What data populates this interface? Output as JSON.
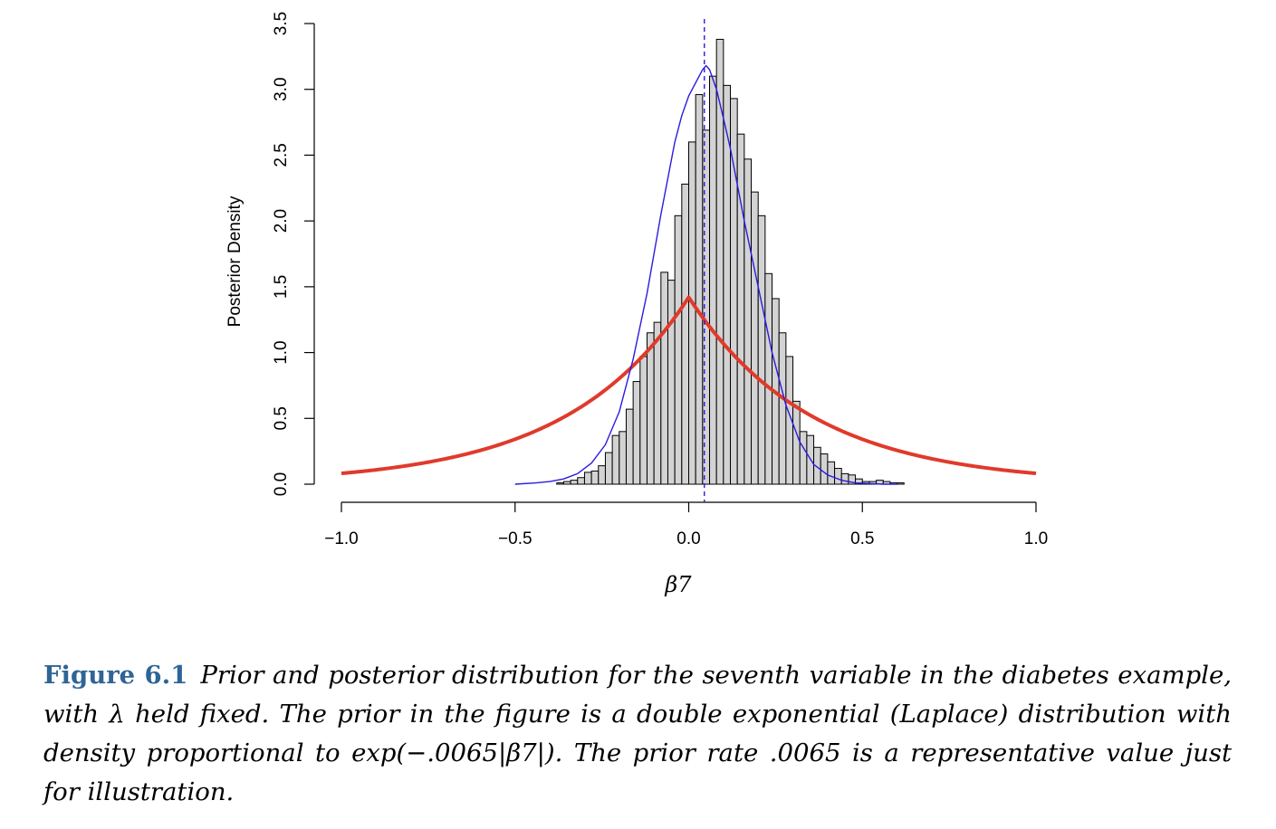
{
  "chart_data": {
    "type": "bar",
    "xlabel": "β7",
    "ylabel": "Posterior Density",
    "xlim": [
      -1.0,
      1.0
    ],
    "ylim": [
      0.0,
      3.5
    ],
    "x_ticks": [
      -1.0,
      -0.5,
      0.0,
      0.5,
      1.0
    ],
    "x_tick_labels": [
      "−1.0",
      "−0.5",
      "0.0",
      "0.5",
      "1.0"
    ],
    "y_ticks": [
      0.0,
      0.5,
      1.0,
      1.5,
      2.0,
      2.5,
      3.0,
      3.5
    ],
    "y_tick_labels": [
      "0.0",
      "0.5",
      "1.0",
      "1.5",
      "2.0",
      "2.5",
      "3.0",
      "3.5"
    ],
    "histogram": {
      "bin_width": 0.02,
      "bin_edges_start": -0.38,
      "values": [
        0.01,
        0.02,
        0.03,
        0.05,
        0.09,
        0.1,
        0.14,
        0.24,
        0.37,
        0.4,
        0.57,
        0.78,
        0.97,
        1.15,
        1.23,
        1.61,
        1.55,
        2.04,
        2.28,
        2.6,
        2.96,
        2.69,
        3.1,
        3.38,
        3.03,
        2.93,
        2.66,
        2.47,
        2.22,
        2.04,
        1.6,
        1.41,
        1.15,
        0.97,
        0.63,
        0.4,
        0.37,
        0.28,
        0.23,
        0.17,
        0.12,
        0.08,
        0.07,
        0.04,
        0.02,
        0.02,
        0.03,
        0.02,
        0.01,
        0.01
      ],
      "fill_color": "#d3d3d3",
      "edge_color": "#000000"
    },
    "posterior_density": {
      "color": "#2b1be0",
      "x": [
        -0.5,
        -0.44,
        -0.4,
        -0.36,
        -0.32,
        -0.28,
        -0.24,
        -0.2,
        -0.16,
        -0.12,
        -0.08,
        -0.04,
        -0.02,
        0.0,
        0.02,
        0.04,
        0.05,
        0.06,
        0.08,
        0.1,
        0.12,
        0.16,
        0.2,
        0.24,
        0.28,
        0.32,
        0.36,
        0.4,
        0.44,
        0.48,
        0.52,
        0.56,
        0.6
      ],
      "y": [
        0.0,
        0.01,
        0.02,
        0.04,
        0.08,
        0.16,
        0.3,
        0.55,
        0.95,
        1.45,
        2.05,
        2.6,
        2.8,
        2.95,
        3.05,
        3.15,
        3.18,
        3.15,
        3.0,
        2.78,
        2.55,
        2.0,
        1.5,
        1.0,
        0.6,
        0.32,
        0.15,
        0.07,
        0.03,
        0.01,
        0.005,
        0.0,
        0.0
      ]
    },
    "posterior_mean": {
      "x": 0.045,
      "color": "#2b1be0",
      "style": "dashed"
    },
    "prior": {
      "type": "laplace",
      "location": 0.0,
      "peak_density": 1.42,
      "decay_rate": 2.85,
      "color": "#e03a2b"
    }
  },
  "caption": {
    "label": "Figure 6.1",
    "text": "Prior and posterior distribution for the seventh variable in the diabetes example, with λ held fixed. The prior in the figure is a double exponential (Laplace) distribution  with density proportional to exp(−.0065|β7|). The prior rate .0065 is a representative value just for illustration."
  }
}
